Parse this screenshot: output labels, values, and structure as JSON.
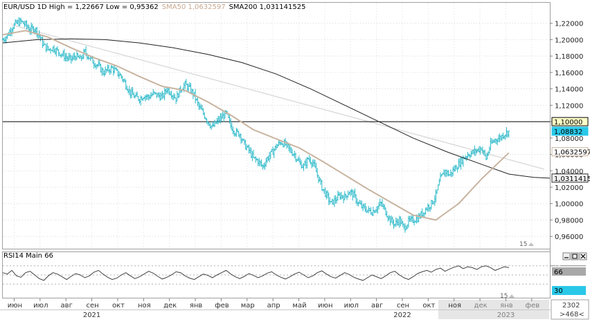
{
  "header": {
    "prefix": "EUR/USD 1D High = 1,22667 Low = 0,95362",
    "sma50_label": "SMA50 1,0632597",
    "sma200_label": "SMA200 1,031141525"
  },
  "rsi": {
    "label": "RSI14 Main 66",
    "value": "66",
    "level_low": "30",
    "level_high": "70"
  },
  "footer": {
    "code": "2302",
    "nav": ">468<",
    "marker_main": "15",
    "marker_rsi": "15"
  },
  "colors": {
    "candle": "#29b8c8",
    "sma50": "#c8b4a0",
    "sma200": "#202020",
    "trend": "#d8d8d8",
    "rsi_line": "#404040",
    "price_level": "#000000"
  },
  "chart_data": {
    "type": "candlestick",
    "title": "EUR/USD 1D",
    "ylim": [
      0.945,
      1.245
    ],
    "yticks": [
      "1,22000",
      "1,20000",
      "1,18000",
      "1,16000",
      "1,14000",
      "1,12000",
      "1,10000",
      "1,08000",
      "1,06000",
      "1,04000",
      "1,02000",
      "1,00000",
      "0,98000",
      "0,96000"
    ],
    "month_labels": [
      "июн",
      "июл",
      "авг",
      "сен",
      "окт",
      "ноя",
      "дек",
      "янв",
      "фев",
      "мар",
      "апр",
      "май",
      "июн",
      "июл",
      "авг",
      "сен",
      "окт",
      "ноя",
      "дек",
      "янв",
      "фев"
    ],
    "year_labels": [
      {
        "label": "2021",
        "month_index": 3
      },
      {
        "label": "2022",
        "month_index": 15
      },
      {
        "label": "2023",
        "month_index": 19
      }
    ],
    "price_tags": [
      {
        "label": "1,10000",
        "value": 1.1
      },
      {
        "label": "1,08832",
        "value": 1.08832
      },
      {
        "label": "1,0632597",
        "value": 1.0632597
      },
      {
        "label": "1,03114152",
        "value": 1.0311415
      }
    ],
    "close_path": [
      [
        0,
        1.2
      ],
      [
        4,
        1.205
      ],
      [
        8,
        1.215
      ],
      [
        12,
        1.22
      ],
      [
        16,
        1.222
      ],
      [
        20,
        1.218
      ],
      [
        24,
        1.212
      ],
      [
        28,
        1.214
      ],
      [
        32,
        1.205
      ],
      [
        36,
        1.193
      ],
      [
        40,
        1.188
      ],
      [
        44,
        1.19
      ],
      [
        48,
        1.186
      ],
      [
        52,
        1.182
      ],
      [
        56,
        1.178
      ],
      [
        60,
        1.176
      ],
      [
        64,
        1.18
      ],
      [
        68,
        1.176
      ],
      [
        72,
        1.185
      ],
      [
        76,
        1.178
      ],
      [
        80,
        1.172
      ],
      [
        84,
        1.168
      ],
      [
        88,
        1.16
      ],
      [
        92,
        1.163
      ],
      [
        96,
        1.165
      ],
      [
        100,
        1.16
      ],
      [
        104,
        1.155
      ],
      [
        108,
        1.145
      ],
      [
        112,
        1.135
      ],
      [
        116,
        1.13
      ],
      [
        120,
        1.128
      ],
      [
        124,
        1.132
      ],
      [
        128,
        1.13
      ],
      [
        132,
        1.134
      ],
      [
        136,
        1.132
      ],
      [
        140,
        1.13
      ],
      [
        144,
        1.14
      ],
      [
        148,
        1.135
      ],
      [
        152,
        1.128
      ],
      [
        156,
        1.14
      ],
      [
        160,
        1.145
      ],
      [
        164,
        1.14
      ],
      [
        168,
        1.132
      ],
      [
        172,
        1.118
      ],
      [
        176,
        1.11
      ],
      [
        180,
        1.1
      ],
      [
        184,
        1.093
      ],
      [
        188,
        1.1
      ],
      [
        192,
        1.105
      ],
      [
        196,
        1.11
      ],
      [
        200,
        1.095
      ],
      [
        204,
        1.087
      ],
      [
        208,
        1.085
      ],
      [
        212,
        1.072
      ],
      [
        216,
        1.065
      ],
      [
        220,
        1.055
      ],
      [
        224,
        1.052
      ],
      [
        228,
        1.045
      ],
      [
        232,
        1.055
      ],
      [
        236,
        1.062
      ],
      [
        240,
        1.07
      ],
      [
        244,
        1.075
      ],
      [
        248,
        1.072
      ],
      [
        252,
        1.065
      ],
      [
        256,
        1.06
      ],
      [
        260,
        1.05
      ],
      [
        264,
        1.045
      ],
      [
        268,
        1.055
      ],
      [
        272,
        1.05
      ],
      [
        276,
        1.035
      ],
      [
        280,
        1.02
      ],
      [
        284,
        1.01
      ],
      [
        288,
        1.0
      ],
      [
        292,
        1.005
      ],
      [
        296,
        1.01
      ],
      [
        300,
        1.008
      ],
      [
        304,
        1.015
      ],
      [
        308,
        1.01
      ],
      [
        312,
        1.0
      ],
      [
        316,
        0.995
      ],
      [
        320,
        0.992
      ],
      [
        324,
        0.99
      ],
      [
        328,
        0.995
      ],
      [
        332,
        1.0
      ],
      [
        336,
        0.99
      ],
      [
        340,
        0.98
      ],
      [
        344,
        0.975
      ],
      [
        348,
        0.98
      ],
      [
        352,
        0.97
      ],
      [
        356,
        0.978
      ],
      [
        360,
        0.98
      ],
      [
        364,
        0.982
      ],
      [
        368,
        0.988
      ],
      [
        372,
        0.995
      ],
      [
        376,
        1.0
      ],
      [
        380,
        1.01
      ],
      [
        384,
        1.03
      ],
      [
        388,
        1.04
      ],
      [
        392,
        1.035
      ],
      [
        396,
        1.042
      ],
      [
        400,
        1.048
      ],
      [
        404,
        1.055
      ],
      [
        408,
        1.06
      ],
      [
        412,
        1.062
      ],
      [
        416,
        1.065
      ],
      [
        420,
        1.068
      ],
      [
        424,
        1.055
      ],
      [
        428,
        1.072
      ],
      [
        432,
        1.078
      ],
      [
        436,
        1.08
      ],
      [
        440,
        1.085
      ],
      [
        444,
        1.088
      ]
    ],
    "sma50_path": [
      [
        0,
        1.206
      ],
      [
        20,
        1.211
      ],
      [
        40,
        1.203
      ],
      [
        60,
        1.19
      ],
      [
        80,
        1.178
      ],
      [
        100,
        1.168
      ],
      [
        120,
        1.155
      ],
      [
        140,
        1.143
      ],
      [
        160,
        1.138
      ],
      [
        180,
        1.124
      ],
      [
        200,
        1.108
      ],
      [
        220,
        1.09
      ],
      [
        240,
        1.079
      ],
      [
        260,
        1.068
      ],
      [
        280,
        1.052
      ],
      [
        300,
        1.035
      ],
      [
        320,
        1.018
      ],
      [
        340,
        1.002
      ],
      [
        360,
        0.986
      ],
      [
        380,
        0.98
      ],
      [
        400,
        1.0
      ],
      [
        420,
        1.03
      ],
      [
        444,
        1.062
      ]
    ],
    "sma200_path": [
      [
        0,
        1.196
      ],
      [
        30,
        1.2
      ],
      [
        60,
        1.201
      ],
      [
        90,
        1.2
      ],
      [
        120,
        1.196
      ],
      [
        150,
        1.19
      ],
      [
        180,
        1.182
      ],
      [
        210,
        1.172
      ],
      [
        240,
        1.158
      ],
      [
        270,
        1.14
      ],
      [
        300,
        1.12
      ],
      [
        330,
        1.1
      ],
      [
        360,
        1.08
      ],
      [
        390,
        1.063
      ],
      [
        420,
        1.048
      ],
      [
        444,
        1.036
      ],
      [
        466,
        1.032
      ],
      [
        480,
        1.031
      ]
    ],
    "trendline": [
      [
        8,
        1.218
      ],
      [
        475,
        1.042
      ]
    ],
    "rsi_values": [
      55,
      52,
      60,
      48,
      45,
      55,
      58,
      50,
      42,
      38,
      48,
      55,
      52,
      46,
      40,
      47,
      53,
      50,
      44,
      48,
      56,
      60,
      52,
      45,
      40,
      43,
      50,
      55,
      48,
      42,
      46,
      52,
      58,
      54,
      47,
      41,
      45,
      50,
      57,
      55,
      48,
      43,
      40,
      46,
      52,
      49,
      44,
      50,
      55,
      60,
      52,
      46,
      42,
      47,
      53,
      49,
      44,
      48,
      54,
      57,
      50,
      45,
      41,
      46,
      52,
      56,
      50,
      44,
      48,
      55,
      59,
      52,
      46,
      43,
      49,
      55,
      51,
      45,
      41,
      38,
      44,
      50,
      46,
      42,
      48,
      55,
      58,
      50,
      44,
      40,
      46,
      53,
      57,
      60,
      56,
      62,
      65,
      58,
      63,
      67,
      70,
      64,
      68,
      66,
      62,
      68,
      70,
      66,
      60,
      64,
      68,
      66
    ]
  }
}
